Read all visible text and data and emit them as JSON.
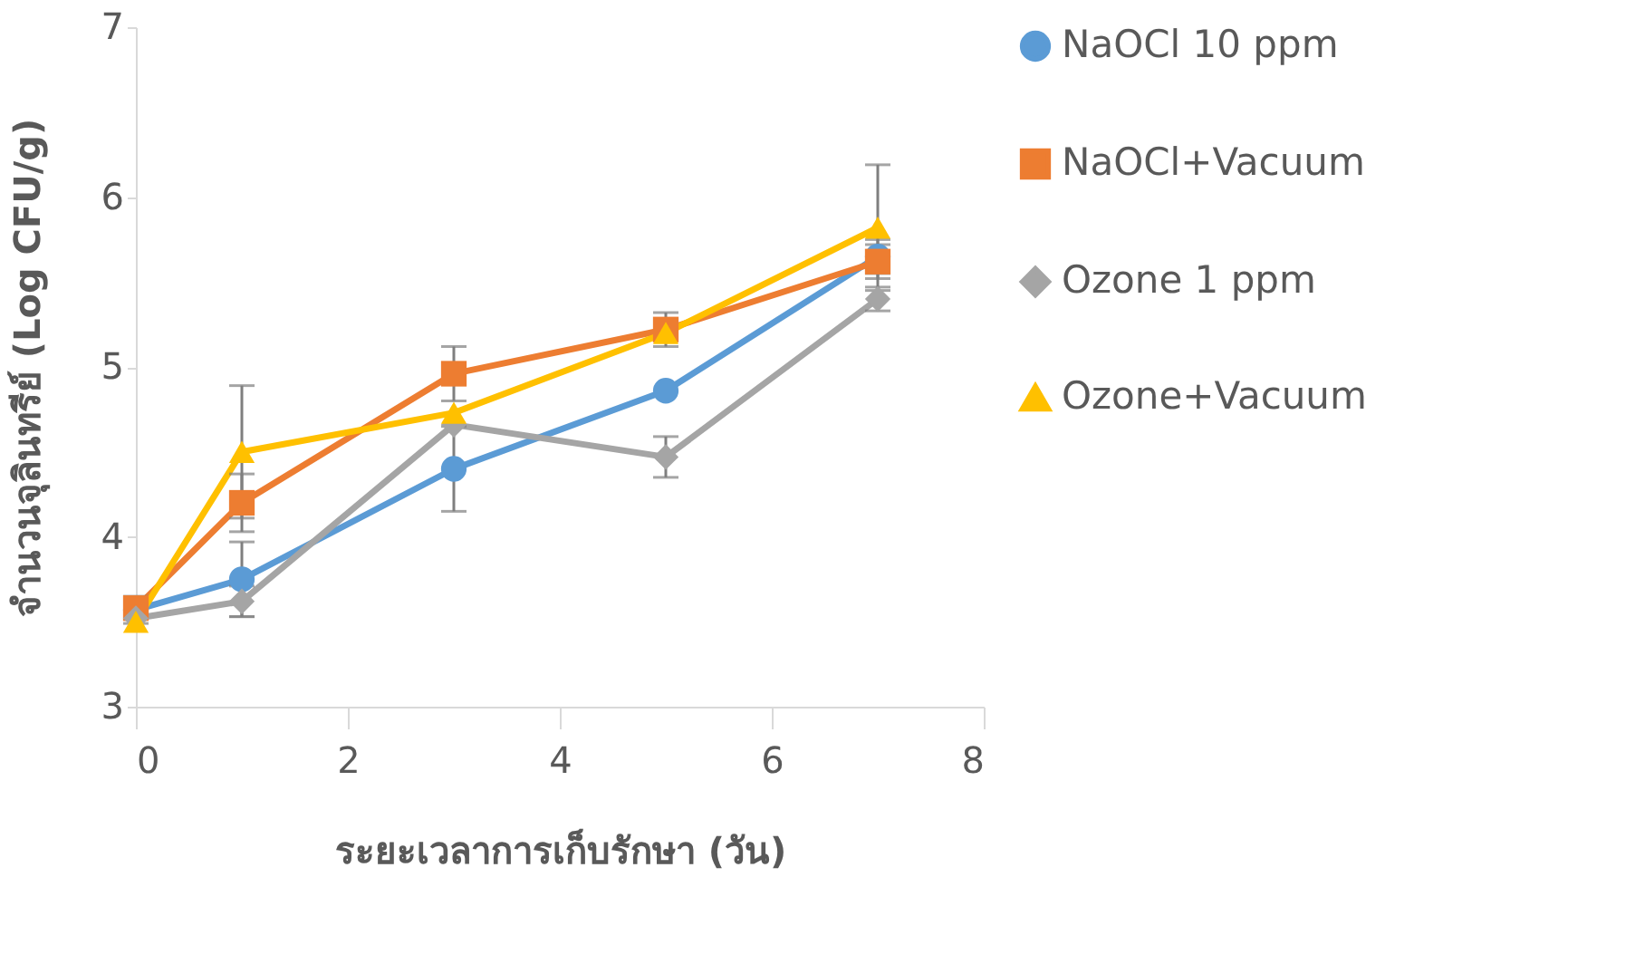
{
  "chart_data": {
    "type": "line",
    "xlabel": "ระยะเวลาการเก็บรักษา (วัน)",
    "ylabel": "จำนวนจุลินทรีย์ (Log CFU/g)",
    "xlim": [
      0,
      8
    ],
    "xticks": [
      0,
      2,
      4,
      6,
      8
    ],
    "ylim": [
      3,
      7
    ],
    "yticks": [
      3,
      4,
      5,
      6,
      7
    ],
    "x": [
      0,
      1,
      3,
      5,
      7
    ],
    "grid": false,
    "legend": "right",
    "series": [
      {
        "name": "NaOCl 10 ppm",
        "color": "#5b9bd5",
        "marker": "circle",
        "values": [
          3.57,
          3.75,
          4.4,
          4.86,
          5.65
        ],
        "errors": [
          0.08,
          0.22,
          0.25,
          null,
          0.1
        ]
      },
      {
        "name": "NaOCl+Vacuum",
        "color": "#ed7d31",
        "marker": "square",
        "values": [
          3.58,
          4.2,
          4.96,
          5.22,
          5.62
        ],
        "errors": [
          null,
          0.17,
          0.16,
          0.1,
          0.1
        ]
      },
      {
        "name": "Ozone 1 ppm",
        "color": "#a5a5a5",
        "marker": "diamond",
        "values": [
          3.52,
          3.62,
          4.66,
          4.47,
          5.4
        ],
        "errors": [
          null,
          0.09,
          null,
          0.12,
          0.07
        ]
      },
      {
        "name": "Ozone+Vacuum",
        "color": "#ffc000",
        "marker": "triangle",
        "values": [
          3.5,
          4.5,
          4.73,
          5.2,
          5.82
        ],
        "errors": [
          null,
          0.39,
          null,
          null,
          0.37
        ]
      }
    ]
  }
}
